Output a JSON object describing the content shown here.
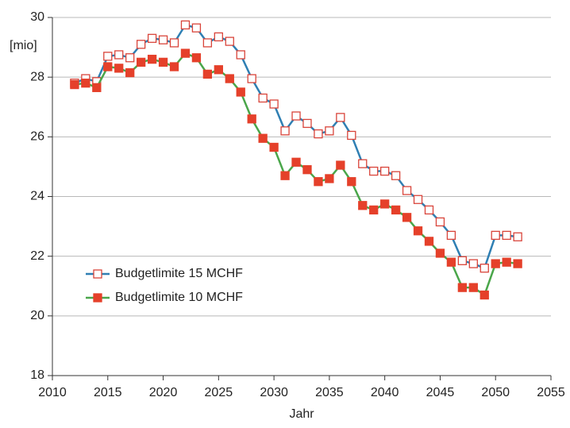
{
  "chart_data": {
    "type": "line",
    "y_label": "[mio]",
    "x_label": "Jahr",
    "x": [
      2012,
      2013,
      2014,
      2015,
      2016,
      2017,
      2018,
      2019,
      2020,
      2021,
      2022,
      2023,
      2024,
      2025,
      2026,
      2027,
      2028,
      2029,
      2030,
      2031,
      2032,
      2033,
      2034,
      2035,
      2036,
      2037,
      2038,
      2039,
      2040,
      2041,
      2042,
      2043,
      2044,
      2045,
      2046,
      2047,
      2048,
      2049,
      2050,
      2051,
      2052
    ],
    "series": [
      {
        "name": "Budgetlimite 15 MCHF",
        "color": "#2f7fb3",
        "marker_color": "#d9443a",
        "marker_fill": "#ffffff",
        "values": [
          27.8,
          27.95,
          27.85,
          28.7,
          28.75,
          28.65,
          29.1,
          29.3,
          29.25,
          29.15,
          29.75,
          29.65,
          29.15,
          29.35,
          29.2,
          28.75,
          27.95,
          27.3,
          27.1,
          26.2,
          26.7,
          26.45,
          26.1,
          26.2,
          26.65,
          26.05,
          25.1,
          24.85,
          24.85,
          24.7,
          24.2,
          23.9,
          23.55,
          23.15,
          22.7,
          21.85,
          21.75,
          21.6,
          22.7,
          22.7,
          22.65
        ]
      },
      {
        "name": "Budgetlimite 10 MCHF",
        "color": "#4aa64a",
        "marker_color": "#e5402a",
        "marker_fill": "#e5402a",
        "values": [
          27.75,
          27.8,
          27.65,
          28.35,
          28.3,
          28.15,
          28.5,
          28.6,
          28.5,
          28.35,
          28.8,
          28.65,
          28.1,
          28.25,
          27.95,
          27.5,
          26.6,
          25.95,
          25.65,
          24.7,
          25.15,
          24.9,
          24.5,
          24.6,
          25.05,
          24.5,
          23.7,
          23.55,
          23.75,
          23.55,
          23.3,
          22.85,
          22.5,
          22.1,
          21.8,
          20.95,
          20.95,
          20.7,
          21.75,
          21.8,
          21.75
        ]
      }
    ],
    "xlim": [
      2010,
      2055
    ],
    "xticks": [
      2010,
      2015,
      2020,
      2025,
      2030,
      2035,
      2040,
      2045,
      2050,
      2055
    ],
    "ylim": [
      18,
      30
    ],
    "yticks": [
      18,
      20,
      22,
      24,
      26,
      28,
      30
    ],
    "grid": true,
    "legend": "lower left"
  }
}
